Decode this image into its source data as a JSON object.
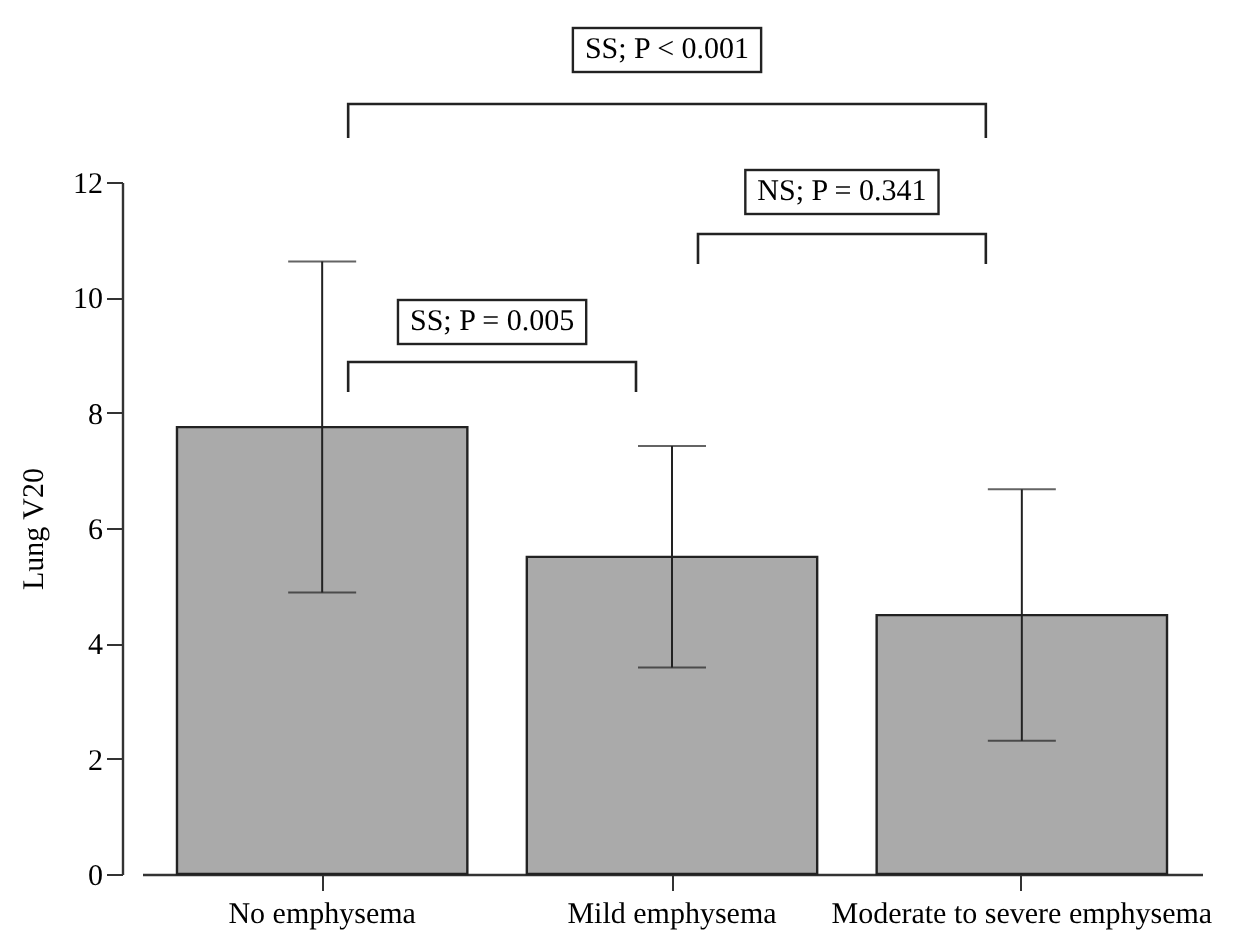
{
  "chart_data": {
    "type": "bar",
    "ylabel": "Lung V20",
    "categories": [
      "No emphysema",
      "Mild emphysema",
      "Moderate to severe emphysema"
    ],
    "values": [
      7.75,
      5.5,
      4.49
    ],
    "errors": [
      2.87,
      1.92,
      2.18
    ],
    "color": "#aaaaaa",
    "ylim": [
      0,
      12
    ],
    "yticks": [
      0,
      2,
      4,
      6,
      8,
      10,
      12
    ],
    "grid": false,
    "annotations": [
      "SS; P = 0.005",
      "NS; P = 0.341",
      "SS; P < 0.001"
    ]
  }
}
